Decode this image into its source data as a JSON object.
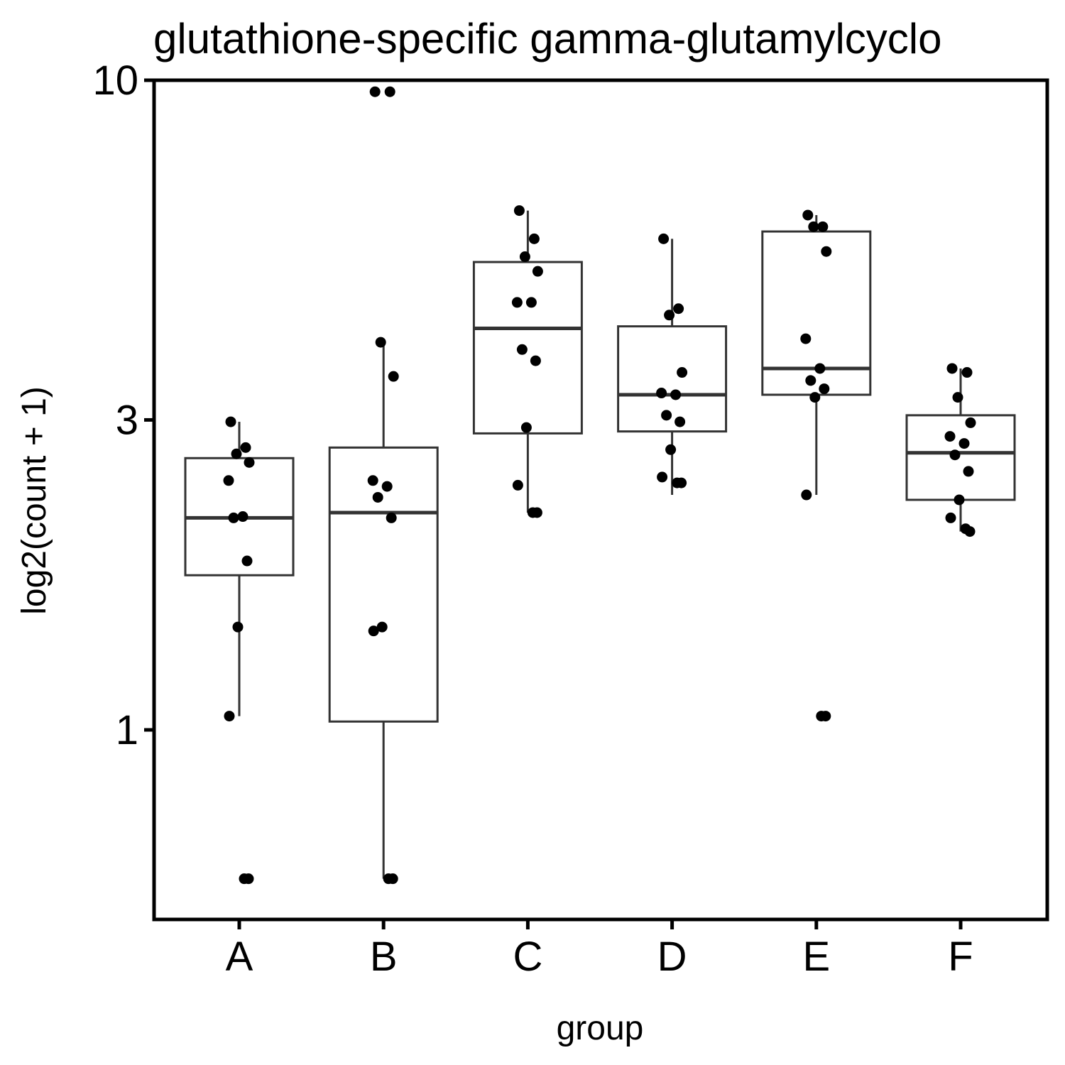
{
  "chart_data": {
    "type": "box",
    "title": "glutathione-specific gamma-glutamylcyclo",
    "xlabel": "group",
    "ylabel": "log2(count + 1)",
    "y_scale": "log10",
    "ylim": [
      0.5,
      10
    ],
    "y_ticks": [
      {
        "value": 1,
        "label": "1"
      },
      {
        "value": 3,
        "label": "3"
      },
      {
        "value": 10,
        "label": "10"
      }
    ],
    "categories": [
      "A",
      "B",
      "C",
      "D",
      "E",
      "F"
    ],
    "boxes": [
      {
        "group": "A",
        "whisker_low": 1.05,
        "q1": 1.73,
        "median": 2.12,
        "q3": 2.62,
        "whisker_high": 2.98
      },
      {
        "group": "B",
        "whisker_low": 0.59,
        "q1": 1.03,
        "median": 2.16,
        "q3": 2.72,
        "whisker_high": 3.95
      },
      {
        "group": "C",
        "whisker_low": 2.16,
        "q1": 2.86,
        "median": 4.15,
        "q3": 5.25,
        "whisker_high": 6.3
      },
      {
        "group": "D",
        "whisker_low": 2.3,
        "q1": 2.88,
        "median": 3.28,
        "q3": 4.18,
        "whisker_high": 5.7
      },
      {
        "group": "E",
        "whisker_low": 2.3,
        "q1": 3.28,
        "median": 3.6,
        "q3": 5.85,
        "whisker_high": 6.2
      },
      {
        "group": "F",
        "whisker_low": 2.02,
        "q1": 2.26,
        "median": 2.67,
        "q3": 3.05,
        "whisker_high": 3.6
      }
    ],
    "points": [
      {
        "group": "A",
        "values": [
          2.98,
          2.72,
          2.66,
          2.58,
          2.42,
          2.13,
          2.12,
          1.82,
          1.44,
          1.05,
          0.59,
          0.59
        ]
      },
      {
        "group": "B",
        "values": [
          9.6,
          9.6,
          3.95,
          3.5,
          2.42,
          2.37,
          2.28,
          2.12,
          1.44,
          1.42,
          0.59,
          0.59
        ]
      },
      {
        "group": "C",
        "values": [
          6.3,
          5.7,
          5.35,
          5.08,
          4.55,
          4.55,
          3.85,
          3.7,
          2.92,
          2.38,
          2.16,
          2.16
        ]
      },
      {
        "group": "D",
        "values": [
          5.7,
          4.45,
          4.35,
          3.55,
          3.3,
          3.28,
          3.05,
          2.98,
          2.7,
          2.45,
          2.4,
          2.4
        ]
      },
      {
        "group": "E",
        "values": [
          6.2,
          5.95,
          5.95,
          5.45,
          4.0,
          3.6,
          3.45,
          3.35,
          3.25,
          2.3,
          1.05,
          1.05
        ]
      },
      {
        "group": "F",
        "values": [
          3.6,
          3.55,
          3.25,
          2.97,
          2.83,
          2.76,
          2.65,
          2.5,
          2.26,
          2.12,
          2.04,
          2.02
        ]
      }
    ],
    "grid": false,
    "legend": "none"
  }
}
